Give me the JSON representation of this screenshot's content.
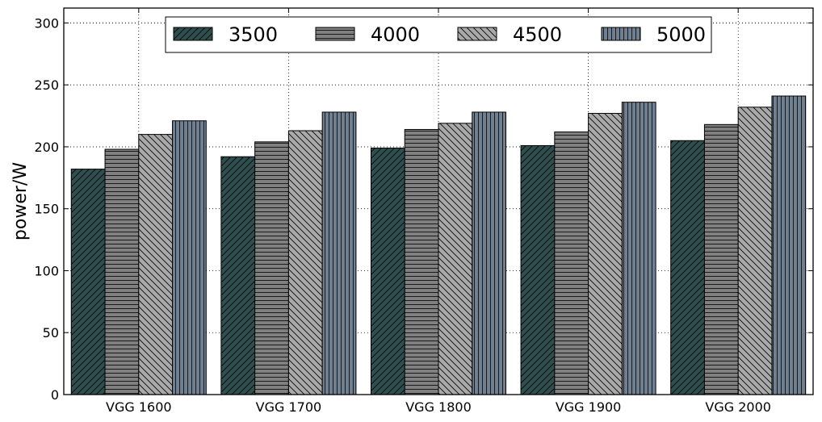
{
  "chart_data": {
    "type": "bar",
    "categories": [
      "VGG 1600",
      "VGG 1700",
      "VGG 1800",
      "VGG 1900",
      "VGG 2000"
    ],
    "series": [
      {
        "name": "3500",
        "values": [
          182,
          192,
          199,
          201,
          205
        ],
        "color": "#2F4F4F",
        "hatch": "diagonal"
      },
      {
        "name": "4000",
        "values": [
          198,
          204,
          214,
          212,
          218
        ],
        "color": "#808080",
        "hatch": "horizontal"
      },
      {
        "name": "4500",
        "values": [
          210,
          213,
          219,
          227,
          232
        ],
        "color": "#A9A9A9",
        "hatch": "backslash"
      },
      {
        "name": "5000",
        "values": [
          221,
          228,
          228,
          236,
          241
        ],
        "color": "#708090",
        "hatch": "vertical"
      }
    ],
    "xlabel": "",
    "ylabel": "power/W",
    "ylim": [
      0,
      312
    ],
    "yticks": [
      0,
      50,
      100,
      150,
      200,
      250,
      300
    ],
    "grid": true,
    "legend": "top-center"
  }
}
